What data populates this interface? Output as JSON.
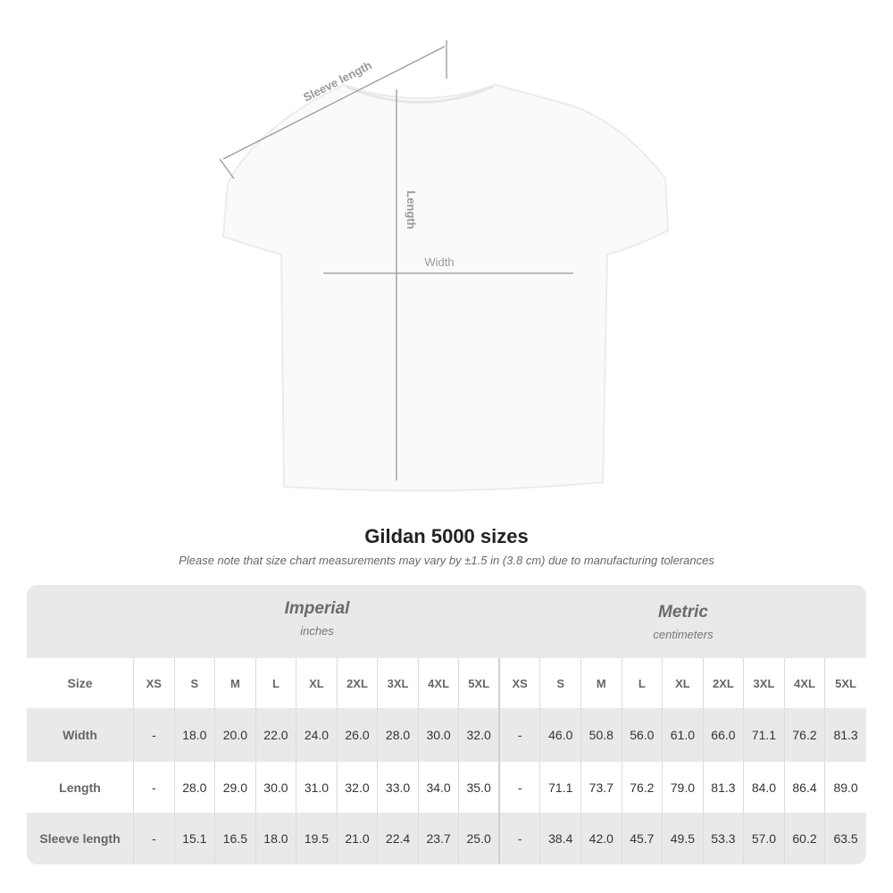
{
  "diagram": {
    "labels": {
      "sleeve": "Sleeve length",
      "length": "Length",
      "width": "Width"
    }
  },
  "title": "Gildan 5000 sizes",
  "note": "Please note that size chart measurements may vary by ±1.5 in (3.8 cm) due to manufacturing tolerances",
  "imperial": {
    "heading": "Imperial",
    "unit": "inches"
  },
  "metric": {
    "heading": "Metric",
    "unit": "centimeters"
  },
  "chart_data": {
    "type": "table",
    "size_label": "Size",
    "sizes": [
      "XS",
      "S",
      "M",
      "L",
      "XL",
      "2XL",
      "3XL",
      "4XL",
      "5XL"
    ],
    "rows": [
      {
        "label": "Width",
        "imperial": [
          "-",
          "18.0",
          "20.0",
          "22.0",
          "24.0",
          "26.0",
          "28.0",
          "30.0",
          "32.0"
        ],
        "metric": [
          "-",
          "46.0",
          "50.8",
          "56.0",
          "61.0",
          "66.0",
          "71.1",
          "76.2",
          "81.3"
        ]
      },
      {
        "label": "Length",
        "imperial": [
          "-",
          "28.0",
          "29.0",
          "30.0",
          "31.0",
          "32.0",
          "33.0",
          "34.0",
          "35.0"
        ],
        "metric": [
          "-",
          "71.1",
          "73.7",
          "76.2",
          "79.0",
          "81.3",
          "84.0",
          "86.4",
          "89.0"
        ]
      },
      {
        "label": "Sleeve length",
        "imperial": [
          "-",
          "15.1",
          "16.5",
          "18.0",
          "19.5",
          "21.0",
          "22.4",
          "23.7",
          "25.0"
        ],
        "metric": [
          "-",
          "38.4",
          "42.0",
          "45.7",
          "49.5",
          "53.3",
          "57.0",
          "60.2",
          "63.5"
        ]
      }
    ]
  }
}
